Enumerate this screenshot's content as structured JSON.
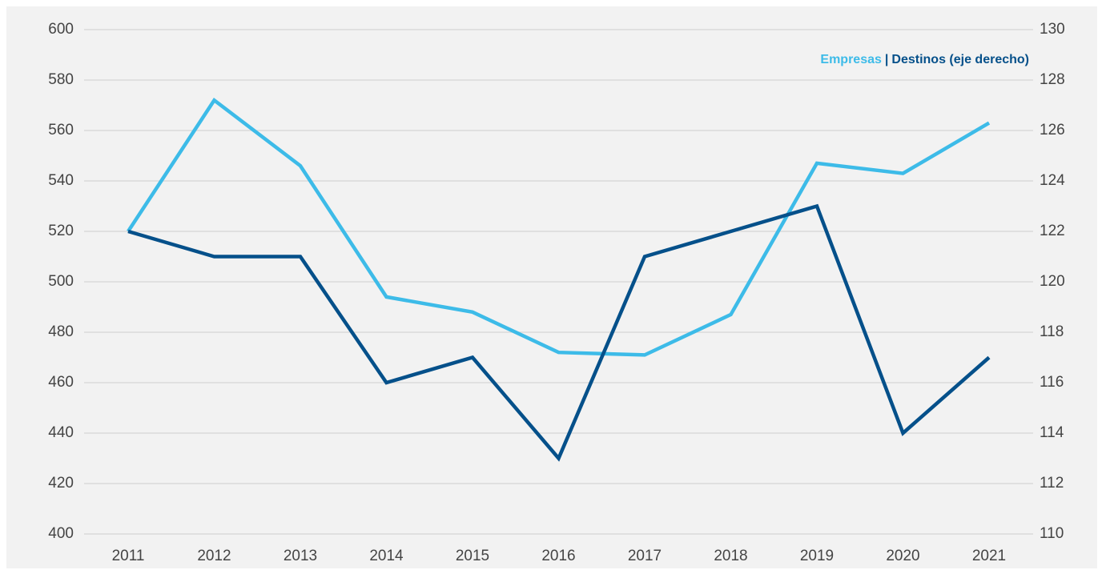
{
  "chart_data": {
    "type": "line",
    "categories": [
      "2011",
      "2012",
      "2013",
      "2014",
      "2015",
      "2016",
      "2017",
      "2018",
      "2019",
      "2020",
      "2021"
    ],
    "series": [
      {
        "name": "Empresas",
        "color": "#3dbbe8",
        "axis": "y",
        "values": [
          520,
          572,
          546,
          494,
          488,
          472,
          471,
          487,
          547,
          543,
          563
        ]
      },
      {
        "name": "Destinos (eje derecho)",
        "color": "#05508a",
        "axis": "y2",
        "values": [
          122,
          121,
          121,
          116,
          117,
          113,
          121,
          122,
          123,
          114,
          117
        ]
      }
    ],
    "legend_separator": "|",
    "legend_position": "top-right",
    "ylim": [
      400,
      600
    ],
    "yticks": [
      400,
      420,
      440,
      460,
      480,
      500,
      520,
      540,
      560,
      580,
      600
    ],
    "y2lim": [
      110,
      130
    ],
    "y2ticks": [
      110,
      112,
      114,
      116,
      118,
      120,
      122,
      124,
      126,
      128,
      130
    ],
    "grid": true
  }
}
